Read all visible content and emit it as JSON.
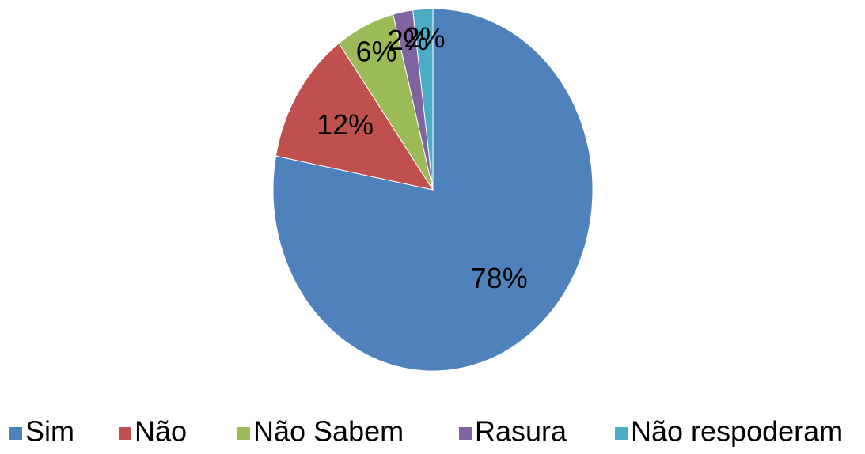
{
  "chart_data": {
    "type": "pie",
    "categories": [
      "Sim",
      "Não",
      "Não Sabem",
      "Rasura",
      "Não respoderam"
    ],
    "values": [
      78,
      12,
      6,
      2,
      2
    ],
    "value_labels": [
      "78%",
      "12%",
      "6%",
      "2%",
      "2%"
    ],
    "colors": [
      "#4f81bd",
      "#c0504d",
      "#9bbb59",
      "#8064a2",
      "#4bacc6"
    ],
    "legend": "bottom"
  }
}
